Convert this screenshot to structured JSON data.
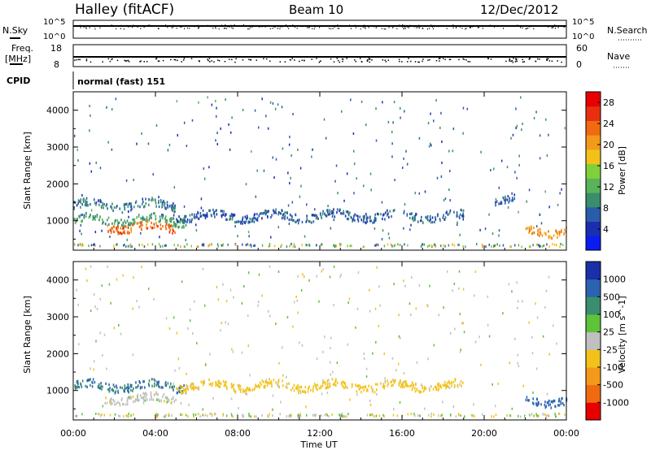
{
  "header": {
    "title_left": "Halley (fitACF)",
    "title_center": "Beam 10",
    "title_right": "12/Dec/2012"
  },
  "strips": {
    "nsky_label": "N.Sky",
    "nsky_ticks": [
      "10^5",
      "10^0"
    ],
    "nsearch_label": "N.Search",
    "freq_label": "Freq.",
    "freq_unit": "[MHz]",
    "freq_ticks": [
      "18",
      "8"
    ],
    "nave_label": "Nave",
    "nave_ticks": [
      "60",
      "0"
    ],
    "cpid_label": "CPID",
    "cpid_value": "normal (fast) 151"
  },
  "colors": {
    "power_scale": [
      "#0a1cf0",
      "#1a2fb0",
      "#2a5da8",
      "#3a8e6e",
      "#58b35a",
      "#7fd03a",
      "#f2c21a",
      "#f39a1a",
      "#f06a10",
      "#e83010",
      "#e80000"
    ],
    "velocity_scale": [
      "#1a2fa8",
      "#2a63b0",
      "#3a8e6e",
      "#5ec23a",
      "#c0c0c0",
      "#f2c21a",
      "#f39a1a",
      "#f06a10",
      "#e80000"
    ]
  },
  "chart_data": [
    {
      "type": "heatmap",
      "name": "power",
      "ylabel": "Slant Range [km]",
      "ylim": [
        200,
        4500
      ],
      "y_ticks": [
        "4000",
        "3000",
        "2000",
        "1000"
      ],
      "y_tick_values": [
        4000,
        3000,
        2000,
        1000
      ],
      "colorbar": {
        "label": "Power [dB]",
        "range": [
          0,
          30
        ],
        "ticks": [
          "28",
          "24",
          "20",
          "16",
          "12",
          "8",
          "4"
        ],
        "tick_values": [
          28,
          24,
          20,
          16,
          12,
          8,
          4
        ]
      },
      "features": [
        {
          "t_start": 0.0,
          "t_end": 5.0,
          "range_km": 1450,
          "power_db": 7
        },
        {
          "t_start": 0.0,
          "t_end": 5.5,
          "range_km": 1050,
          "power_db": 10
        },
        {
          "t_start": 1.5,
          "t_end": 5.0,
          "range_km": 850,
          "power_db": 24
        },
        {
          "t_start": 5.0,
          "t_end": 19.0,
          "range_km": 1150,
          "power_db": 6
        },
        {
          "t_start": 20.5,
          "t_end": 21.5,
          "range_km": 1600,
          "power_db": 6
        },
        {
          "t_start": 22.0,
          "t_end": 24.0,
          "range_km": 750,
          "power_db": 22
        }
      ]
    },
    {
      "type": "heatmap",
      "name": "velocity",
      "ylabel": "Slant Range [km]",
      "xlabel": "Time UT",
      "xlim": [
        0,
        24
      ],
      "x_ticks": [
        "00:00",
        "04:00",
        "08:00",
        "12:00",
        "16:00",
        "20:00",
        "00:00"
      ],
      "ylim": [
        200,
        4500
      ],
      "y_ticks": [
        "4000",
        "3000",
        "2000",
        "1000"
      ],
      "y_tick_values": [
        4000,
        3000,
        2000,
        1000
      ],
      "colorbar": {
        "label": "Velocity [m s^-1]",
        "ticks": [
          "1000",
          "500",
          "100",
          "25",
          "-25",
          "-100",
          "-500",
          "-1000"
        ],
        "tick_values": [
          1000,
          500,
          100,
          25,
          -25,
          -100,
          -500,
          -1000
        ]
      },
      "features": [
        {
          "t_start": 0.0,
          "t_end": 5.5,
          "range_km": 1150,
          "velocity": 100
        },
        {
          "t_start": 1.5,
          "t_end": 5.0,
          "range_km": 800,
          "velocity": 0
        },
        {
          "t_start": 5.0,
          "t_end": 19.0,
          "range_km": 1150,
          "velocity": -50
        },
        {
          "t_start": 22.0,
          "t_end": 24.0,
          "range_km": 750,
          "velocity": 200
        }
      ]
    }
  ]
}
